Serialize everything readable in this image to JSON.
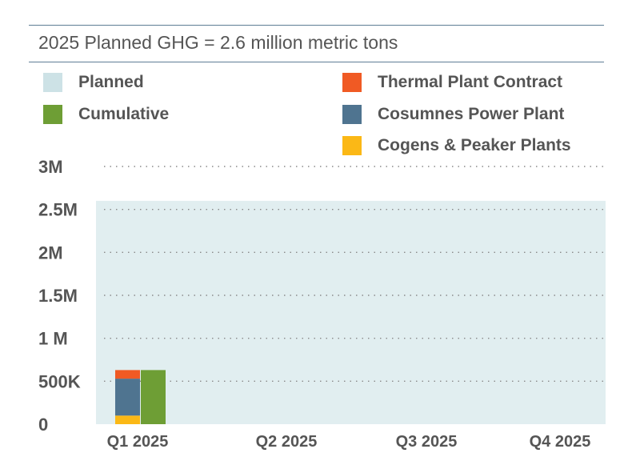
{
  "title": "2025 Planned GHG = 2.6 million metric tons",
  "legend": [
    {
      "label": "Planned",
      "color": "#cde2e6"
    },
    {
      "label": "Cumulative",
      "color": "#6e9e35"
    },
    {
      "label": "Thermal Plant Contract",
      "color": "#f05a24"
    },
    {
      "label": "Cosumnes Power Plant",
      "color": "#4f7490"
    },
    {
      "label": "Cogens & Peaker Plants",
      "color": "#fbb816"
    }
  ],
  "chart_data": {
    "type": "bar",
    "categories": [
      "Q1 2025",
      "Q2 2025",
      "Q3 2025",
      "Q4 2025"
    ],
    "y_ticks": [
      {
        "value": 0,
        "label": "0"
      },
      {
        "value": 500000,
        "label": "500K"
      },
      {
        "value": 1000000,
        "label": "1 M"
      },
      {
        "value": 1500000,
        "label": "1.5M"
      },
      {
        "value": 2000000,
        "label": "2M"
      },
      {
        "value": 2500000,
        "label": "2.5M"
      },
      {
        "value": 3000000,
        "label": "3M"
      }
    ],
    "ylim": [
      0,
      3000000
    ],
    "planned": 2600000,
    "stacked_series": [
      {
        "name": "Cogens & Peaker Plants",
        "color": "#fbb816",
        "values": [
          100000,
          null,
          null,
          null
        ]
      },
      {
        "name": "Cosumnes Power Plant",
        "color": "#4f7490",
        "values": [
          430000,
          null,
          null,
          null
        ]
      },
      {
        "name": "Thermal Plant Contract",
        "color": "#f05a24",
        "values": [
          100000,
          null,
          null,
          null
        ]
      }
    ],
    "cumulative": {
      "name": "Cumulative",
      "color": "#6e9e35",
      "values": [
        630000,
        null,
        null,
        null
      ]
    },
    "grid": true,
    "legend_position": "top"
  }
}
